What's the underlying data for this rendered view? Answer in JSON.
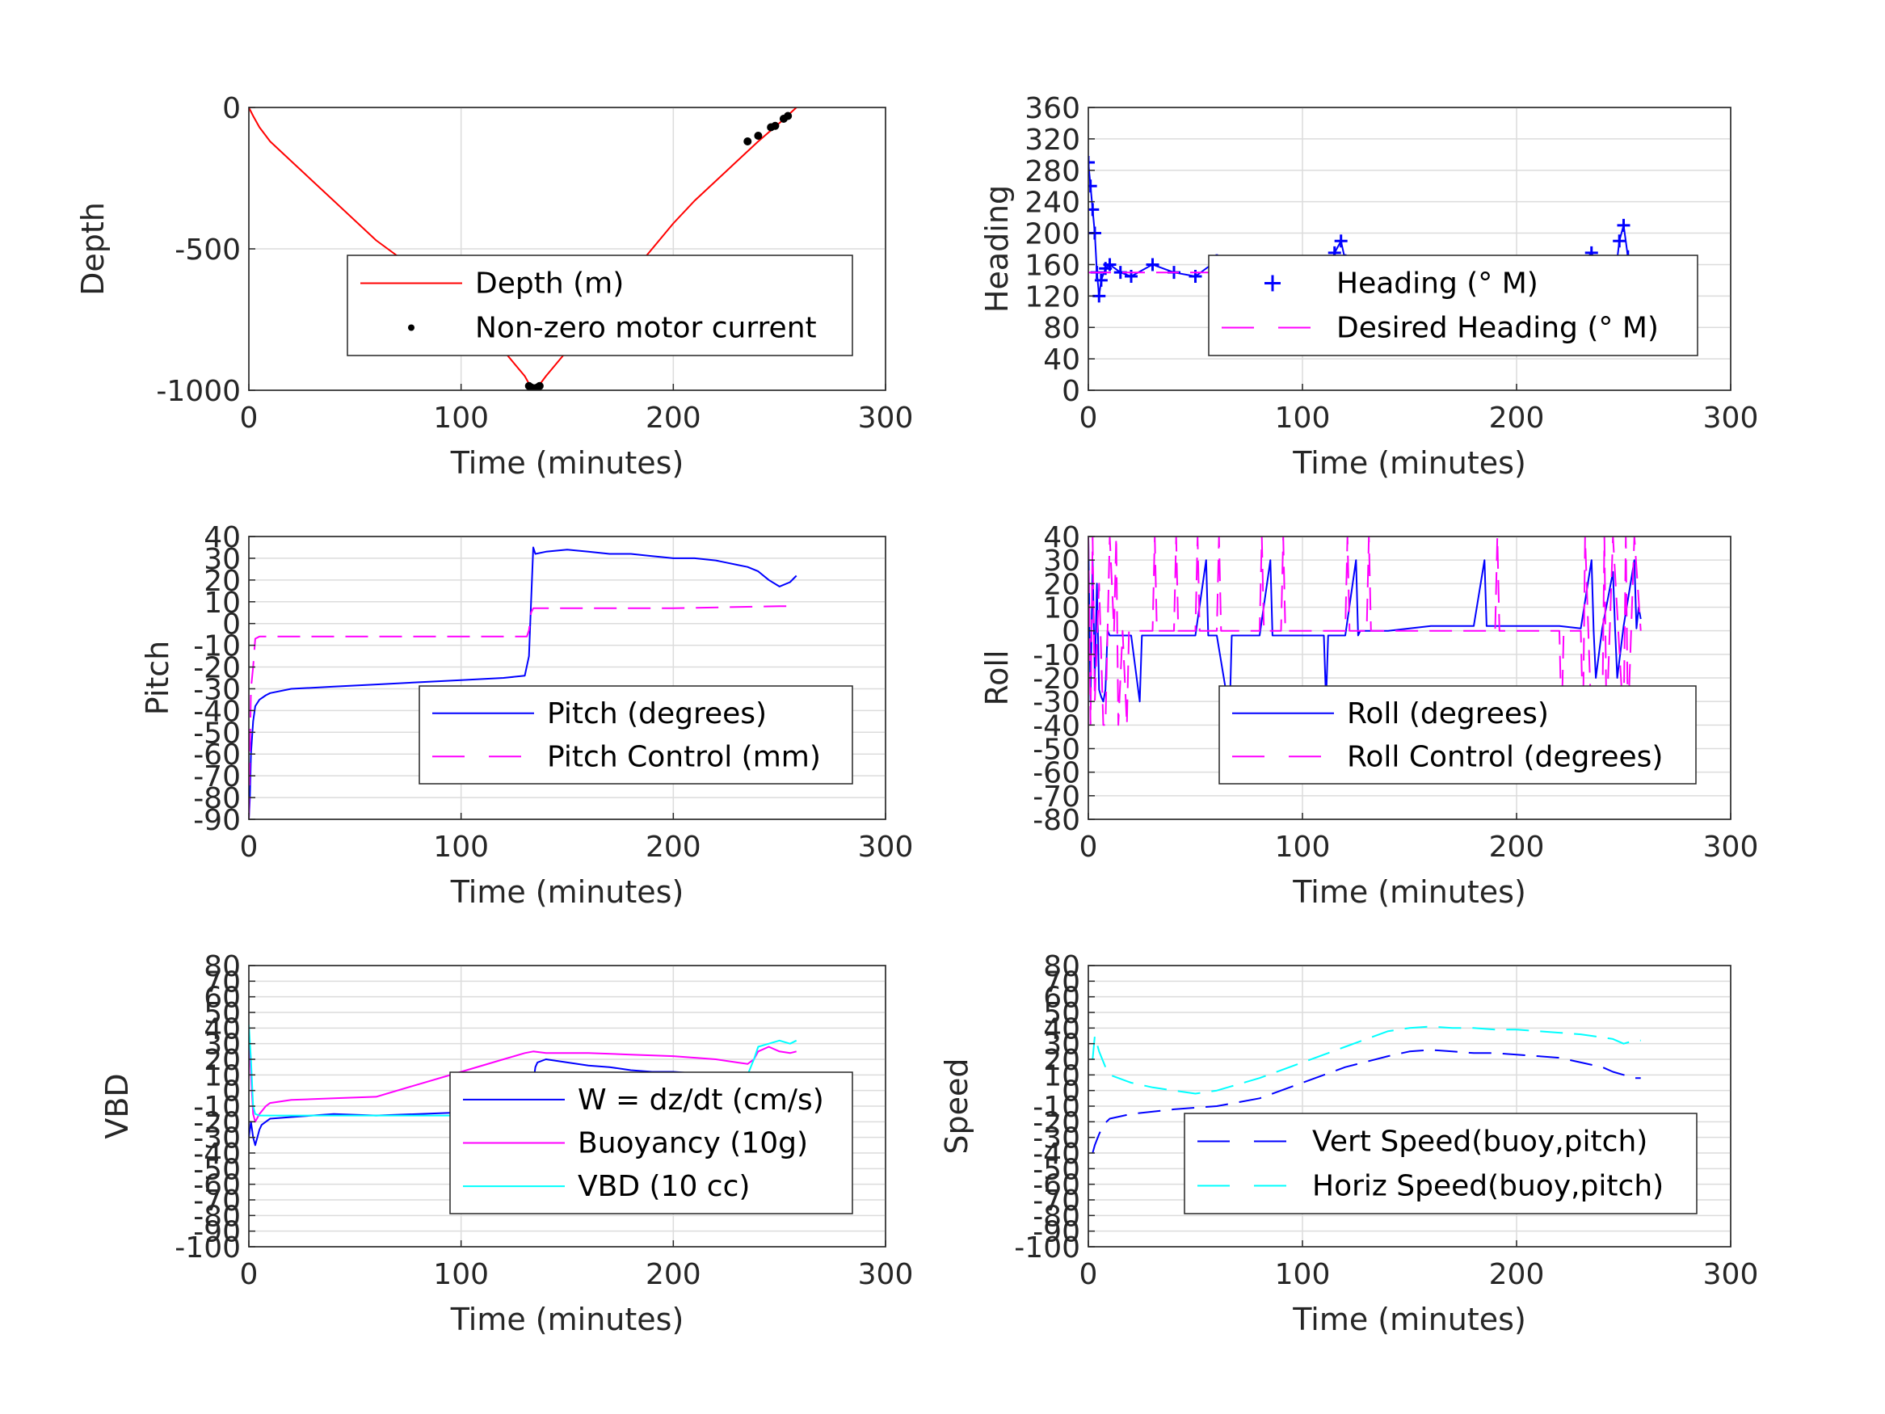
{
  "chart_data": [
    {
      "id": "depth",
      "type": "line",
      "xlabel": "Time (minutes)",
      "ylabel": "Depth",
      "xlim": [
        0,
        300
      ],
      "ylim": [
        -1000,
        0
      ],
      "xticks": [
        0,
        100,
        200,
        300
      ],
      "yticks": [
        -1000,
        -500,
        0
      ],
      "grid": true,
      "legend": {
        "placement": "center-right"
      },
      "series": [
        {
          "name": "Depth (m)",
          "style": "solid",
          "color": "#ff0000",
          "x": [
            0,
            2,
            5,
            10,
            20,
            40,
            60,
            80,
            100,
            120,
            130,
            133,
            134,
            136,
            140,
            150,
            160,
            170,
            180,
            190,
            200,
            210,
            220,
            230,
            240,
            250,
            258
          ],
          "y": [
            0,
            -30,
            -70,
            -120,
            -190,
            -330,
            -470,
            -580,
            -700,
            -860,
            -950,
            -990,
            -995,
            -990,
            -950,
            -860,
            -770,
            -680,
            -590,
            -500,
            -410,
            -330,
            -260,
            -190,
            -120,
            -55,
            0
          ]
        },
        {
          "name": "Non-zero motor current",
          "style": "marker",
          "color": "#000000",
          "x": [
            132,
            133,
            134,
            135,
            136,
            137,
            235,
            240,
            246,
            248,
            252,
            254
          ],
          "y": [
            -985,
            -990,
            -993,
            -993,
            -990,
            -985,
            -120,
            -100,
            -70,
            -65,
            -40,
            -30
          ]
        }
      ]
    },
    {
      "id": "heading",
      "type": "line",
      "xlabel": "Time (minutes)",
      "ylabel": "Heading",
      "xlim": [
        0,
        300
      ],
      "ylim": [
        0,
        360
      ],
      "xticks": [
        0,
        100,
        200,
        300
      ],
      "yticks": [
        0,
        40,
        80,
        120,
        160,
        200,
        240,
        280,
        320,
        360
      ],
      "grid": true,
      "legend": {
        "placement": "center-right"
      },
      "series": [
        {
          "name": "Heading (° M)",
          "style": "plus",
          "color": "#0000ff",
          "x": [
            0,
            1,
            2,
            3,
            4,
            5,
            6,
            8,
            10,
            15,
            20,
            30,
            40,
            50,
            60,
            70,
            80,
            90,
            100,
            110,
            115,
            118,
            120,
            125,
            130,
            140,
            150,
            160,
            165,
            170,
            180,
            190,
            200,
            210,
            220,
            230,
            235,
            240,
            245,
            248,
            250,
            252,
            255,
            258
          ],
          "y": [
            290,
            260,
            230,
            200,
            150,
            120,
            140,
            155,
            160,
            150,
            145,
            160,
            150,
            145,
            165,
            150,
            145,
            160,
            150,
            140,
            175,
            190,
            165,
            155,
            150,
            160,
            145,
            150,
            130,
            140,
            160,
            150,
            145,
            155,
            150,
            160,
            175,
            145,
            120,
            190,
            210,
            170,
            140,
            150
          ]
        },
        {
          "name": "Desired Heading (° M)",
          "style": "dashed",
          "color": "#ff00ff",
          "x": [
            0,
            258
          ],
          "y": [
            150,
            150
          ]
        }
      ]
    },
    {
      "id": "pitch",
      "type": "line",
      "xlabel": "Time (minutes)",
      "ylabel": "Pitch",
      "xlim": [
        0,
        300
      ],
      "ylim": [
        -90,
        40
      ],
      "xticks": [
        0,
        100,
        200,
        300
      ],
      "yticks": [
        -90,
        -80,
        -70,
        -60,
        -50,
        -40,
        -30,
        -20,
        -10,
        0,
        10,
        20,
        30,
        40
      ],
      "grid": true,
      "legend": {
        "placement": "bottom-right"
      },
      "series": [
        {
          "name": "Pitch (degrees)",
          "style": "solid",
          "color": "#0000ff",
          "x": [
            0,
            0.5,
            1,
            2,
            3,
            5,
            8,
            10,
            20,
            40,
            60,
            80,
            100,
            120,
            130,
            132,
            133,
            134,
            135,
            140,
            150,
            160,
            170,
            180,
            190,
            200,
            210,
            220,
            225,
            230,
            235,
            240,
            245,
            250,
            255,
            258
          ],
          "y": [
            -90,
            -80,
            -60,
            -45,
            -38,
            -35,
            -33,
            -32,
            -30,
            -29,
            -28,
            -27,
            -26,
            -25,
            -24,
            -15,
            10,
            35,
            32,
            33,
            34,
            33,
            32,
            32,
            31,
            30,
            30,
            29,
            28,
            27,
            26,
            24,
            20,
            17,
            19,
            22
          ]
        },
        {
          "name": "Pitch Control (mm)",
          "style": "dashed",
          "color": "#ff00ff",
          "x": [
            0,
            0.5,
            1,
            2,
            3,
            5,
            130,
            131,
            132,
            133,
            134,
            135,
            140,
            200,
            250,
            258
          ],
          "y": [
            -90,
            -60,
            -30,
            -20,
            -7,
            -6,
            -6,
            -6,
            -3,
            5,
            7,
            7,
            7,
            7,
            8,
            8
          ]
        }
      ]
    },
    {
      "id": "roll",
      "type": "line",
      "xlabel": "Time (minutes)",
      "ylabel": "Roll",
      "xlim": [
        0,
        300
      ],
      "ylim": [
        -80,
        40
      ],
      "xticks": [
        0,
        100,
        200,
        300
      ],
      "yticks": [
        -80,
        -70,
        -60,
        -50,
        -40,
        -30,
        -20,
        -10,
        0,
        10,
        20,
        30,
        40
      ],
      "grid": true,
      "legend": {
        "placement": "bottom-right"
      },
      "series": [
        {
          "name": "Roll (degrees)",
          "style": "solid",
          "color": "#0000ff",
          "x": [
            0,
            1,
            2,
            3,
            4,
            5,
            6,
            7,
            8,
            9,
            10,
            20,
            24,
            25,
            26,
            30,
            50,
            55,
            56,
            57,
            60,
            66,
            67,
            68,
            80,
            85,
            86,
            87,
            100,
            110,
            111,
            112,
            120,
            125,
            126,
            127,
            140,
            150,
            160,
            170,
            180,
            185,
            186,
            187,
            200,
            210,
            220,
            230,
            235,
            236,
            237,
            240,
            245,
            246,
            247,
            250,
            255,
            256,
            257,
            258
          ],
          "y": [
            40,
            -30,
            30,
            -20,
            20,
            -25,
            -28,
            -30,
            -25,
            0,
            -2,
            -2,
            -30,
            -2,
            -2,
            -2,
            -2,
            30,
            -2,
            -2,
            -2,
            -35,
            -2,
            -2,
            -2,
            30,
            -2,
            -2,
            -2,
            -2,
            -30,
            -2,
            -2,
            30,
            -2,
            0,
            0,
            1,
            2,
            2,
            2,
            30,
            2,
            2,
            2,
            2,
            2,
            1,
            30,
            0,
            -20,
            1,
            25,
            1,
            -20,
            2,
            30,
            1,
            10,
            5
          ]
        },
        {
          "name": "Roll Control (degrees)",
          "style": "dashed",
          "color": "#ff00ff",
          "x": [
            0,
            1,
            2,
            3,
            5,
            7,
            8,
            9,
            10,
            12,
            13,
            14,
            16,
            18,
            19,
            20,
            30,
            31,
            32,
            40,
            41,
            42,
            50,
            51,
            52,
            60,
            61,
            62,
            70,
            80,
            81,
            82,
            90,
            91,
            92,
            100,
            110,
            120,
            121,
            122,
            130,
            131,
            132,
            140,
            150,
            160,
            170,
            180,
            190,
            191,
            192,
            200,
            210,
            220,
            221,
            222,
            230,
            231,
            232,
            235,
            240,
            241,
            242,
            245,
            250,
            251,
            252,
            255,
            258
          ],
          "y": [
            40,
            -40,
            40,
            -30,
            20,
            -40,
            -40,
            0,
            40,
            0,
            40,
            -40,
            0,
            -40,
            0,
            0,
            0,
            40,
            0,
            0,
            40,
            0,
            0,
            40,
            0,
            0,
            40,
            0,
            0,
            0,
            40,
            0,
            0,
            40,
            0,
            0,
            0,
            0,
            40,
            0,
            0,
            40,
            0,
            0,
            0,
            0,
            0,
            0,
            0,
            40,
            0,
            0,
            0,
            0,
            -40,
            0,
            0,
            -40,
            40,
            -40,
            -40,
            40,
            -40,
            40,
            -40,
            40,
            -40,
            40,
            0
          ]
        }
      ]
    },
    {
      "id": "vbd",
      "type": "line",
      "xlabel": "Time (minutes)",
      "ylabel": "VBD",
      "xlim": [
        0,
        300
      ],
      "ylim": [
        -100,
        80
      ],
      "xticks": [
        0,
        100,
        200,
        300
      ],
      "yticks": [
        -100,
        -90,
        -80,
        -70,
        -60,
        -50,
        -40,
        -30,
        -20,
        -10,
        0,
        10,
        20,
        30,
        40,
        50,
        60,
        70,
        80
      ],
      "tick_label_notes": "Tick labels drawn at every 10 units overlap visually in the original.",
      "grid": true,
      "legend": {
        "placement": "bottom-right"
      },
      "series": [
        {
          "name": "W = dz/dt (cm/s)",
          "style": "solid",
          "color": "#0000ff",
          "x": [
            0,
            1,
            2,
            3,
            4,
            5,
            6,
            8,
            10,
            20,
            40,
            60,
            80,
            100,
            120,
            130,
            133,
            134,
            135,
            136,
            140,
            150,
            160,
            170,
            180,
            190,
            200,
            210,
            220,
            230,
            235,
            240,
            245,
            250,
            255,
            258
          ],
          "y": [
            -30,
            -20,
            -30,
            -35,
            -30,
            -25,
            -22,
            -20,
            -18,
            -17,
            -15,
            -16,
            -15,
            -14,
            -13,
            -14,
            -12,
            5,
            15,
            18,
            20,
            18,
            16,
            15,
            13,
            12,
            12,
            11,
            10,
            10,
            5,
            3,
            2,
            4,
            5,
            5
          ]
        },
        {
          "name": "Buoyancy (10g)",
          "style": "solid",
          "color": "#ff00ff",
          "x": [
            0,
            1,
            2,
            3,
            5,
            8,
            10,
            20,
            40,
            60,
            80,
            100,
            120,
            130,
            134,
            140,
            160,
            180,
            200,
            220,
            230,
            235,
            238,
            240,
            245,
            250,
            255,
            258
          ],
          "y": [
            40,
            10,
            -15,
            -20,
            -15,
            -10,
            -8,
            -6,
            -5,
            -4,
            4,
            12,
            20,
            24,
            25,
            24,
            24,
            23,
            22,
            20,
            18,
            17,
            20,
            25,
            28,
            25,
            24,
            25
          ]
        },
        {
          "name": "VBD (10 cc)",
          "style": "solid",
          "color": "#00ffff",
          "x": [
            0,
            1,
            2,
            3,
            5,
            10,
            60,
            100,
            130,
            134,
            135,
            140,
            200,
            230,
            235,
            238,
            240,
            245,
            250,
            255,
            258
          ],
          "y": [
            42,
            20,
            -10,
            -15,
            -16,
            -16,
            -16,
            -16,
            -16,
            5,
            8,
            8,
            8,
            8,
            10,
            20,
            28,
            30,
            32,
            30,
            32
          ]
        }
      ]
    },
    {
      "id": "speed",
      "type": "line",
      "xlabel": "Time (minutes)",
      "ylabel": "Speed",
      "xlim": [
        0,
        300
      ],
      "ylim": [
        -100,
        80
      ],
      "xticks": [
        0,
        100,
        200,
        300
      ],
      "yticks": [
        -100,
        -90,
        -80,
        -70,
        -60,
        -50,
        -40,
        -30,
        -20,
        -10,
        0,
        10,
        20,
        30,
        40,
        50,
        60,
        70,
        80
      ],
      "grid": true,
      "legend": {
        "placement": "bottom-right"
      },
      "series": [
        {
          "name": "Vert Speed(buoy,pitch)",
          "style": "dashed",
          "color": "#0000ff",
          "x": [
            2,
            3,
            5,
            7,
            10,
            20,
            40,
            60,
            80,
            100,
            120,
            140,
            150,
            160,
            170,
            180,
            190,
            200,
            210,
            220,
            230,
            240,
            245,
            250,
            255,
            258
          ],
          "y": [
            -40,
            -35,
            -28,
            -22,
            -18,
            -15,
            -12,
            -10,
            -5,
            5,
            15,
            22,
            25,
            26,
            25,
            24,
            24,
            23,
            22,
            21,
            18,
            15,
            12,
            10,
            8,
            8
          ]
        },
        {
          "name": "Horiz Speed(buoy,pitch)",
          "style": "dashed",
          "color": "#00ffff",
          "x": [
            2,
            3,
            5,
            8,
            10,
            20,
            30,
            40,
            50,
            60,
            80,
            100,
            120,
            140,
            150,
            160,
            170,
            180,
            190,
            200,
            210,
            220,
            230,
            240,
            245,
            250,
            255,
            258
          ],
          "y": [
            20,
            35,
            25,
            15,
            10,
            5,
            2,
            0,
            -2,
            0,
            8,
            18,
            28,
            38,
            40,
            41,
            40,
            40,
            39,
            39,
            38,
            37,
            36,
            34,
            33,
            30,
            32,
            32
          ]
        }
      ]
    }
  ]
}
